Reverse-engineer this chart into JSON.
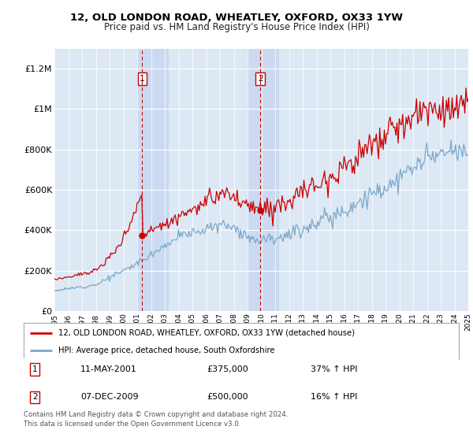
{
  "title": "12, OLD LONDON ROAD, WHEATLEY, OXFORD, OX33 1YW",
  "subtitle": "Price paid vs. HM Land Registry's House Price Index (HPI)",
  "plot_bg_color": "#dde8f5",
  "ylim": [
    0,
    1300000
  ],
  "yticks": [
    0,
    200000,
    400000,
    600000,
    800000,
    1000000,
    1200000
  ],
  "ytick_labels": [
    "£0",
    "£200K",
    "£400K",
    "£600K",
    "£800K",
    "£1M",
    "£1.2M"
  ],
  "sale1_year": 2001.37,
  "sale1_price": 375000,
  "sale2_year": 2009.92,
  "sale2_price": 500000,
  "legend_line1": "12, OLD LONDON ROAD, WHEATLEY, OXFORD, OX33 1YW (detached house)",
  "legend_line2": "HPI: Average price, detached house, South Oxfordshire",
  "annotation1_date": "11-MAY-2001",
  "annotation1_price": "£375,000",
  "annotation1_hpi": "37% ↑ HPI",
  "annotation2_date": "07-DEC-2009",
  "annotation2_price": "£500,000",
  "annotation2_hpi": "16% ↑ HPI",
  "footer": "Contains HM Land Registry data © Crown copyright and database right 2024.\nThis data is licensed under the Open Government Licence v3.0.",
  "red_color": "#cc0000",
  "blue_color": "#7aa8cc",
  "shade_color": "#c8d8f0"
}
